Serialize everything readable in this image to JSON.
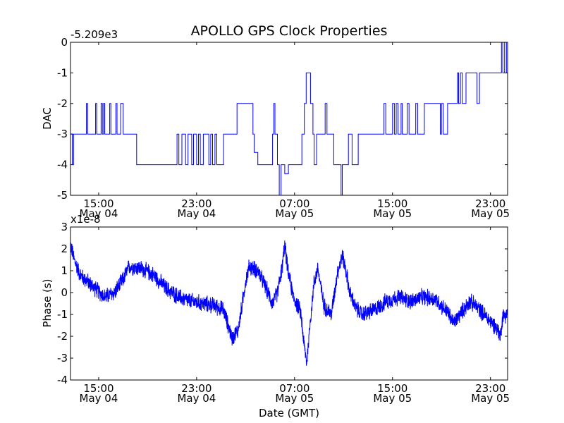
{
  "chart_data": [
    {
      "type": "line",
      "title": "APOLLO GPS Clock Properties",
      "ylabel": "DAC",
      "xlabel": "",
      "offset_label": "-5.209e3",
      "ylim": [
        -5,
        0
      ],
      "yticks": [
        "0",
        "-1",
        "-2",
        "-3",
        "-4",
        "-5"
      ],
      "xlim_hours": [
        12.7,
        48.4
      ],
      "xticks": [
        {
          "hour": 15,
          "time": "15:00",
          "date": "May 04"
        },
        {
          "hour": 23,
          "time": "23:00",
          "date": "May 04"
        },
        {
          "hour": 31,
          "time": "07:00",
          "date": "May 05"
        },
        {
          "hour": 39,
          "time": "15:00",
          "date": "May 05"
        },
        {
          "hour": 47,
          "time": "23:00",
          "date": "May 05"
        }
      ],
      "color": "#0000ff",
      "series": [
        {
          "name": "DAC",
          "steps": [
            [
              12.7,
              -3
            ],
            [
              12.85,
              -4
            ],
            [
              12.95,
              -3
            ],
            [
              14.0,
              -2
            ],
            [
              14.1,
              -3
            ],
            [
              14.75,
              -2
            ],
            [
              14.85,
              -3
            ],
            [
              15.2,
              -2
            ],
            [
              15.3,
              -3
            ],
            [
              15.4,
              -2
            ],
            [
              15.5,
              -3
            ],
            [
              15.9,
              -2
            ],
            [
              16.0,
              -3
            ],
            [
              16.4,
              -2
            ],
            [
              16.5,
              -3
            ],
            [
              16.8,
              -2
            ],
            [
              17.0,
              -3
            ],
            [
              17.5,
              -3
            ],
            [
              18.1,
              -4
            ],
            [
              21.4,
              -3
            ],
            [
              21.55,
              -4
            ],
            [
              21.8,
              -3
            ],
            [
              22.1,
              -4
            ],
            [
              22.3,
              -3
            ],
            [
              22.6,
              -4
            ],
            [
              22.75,
              -3
            ],
            [
              23.0,
              -4
            ],
            [
              23.15,
              -3
            ],
            [
              23.3,
              -4
            ],
            [
              23.55,
              -3
            ],
            [
              24.0,
              -4
            ],
            [
              24.15,
              -3
            ],
            [
              24.3,
              -4
            ],
            [
              24.5,
              -3
            ],
            [
              24.65,
              -4
            ],
            [
              25.2,
              -3
            ],
            [
              26.3,
              -2
            ],
            [
              27.6,
              -3
            ],
            [
              27.7,
              -3.6
            ],
            [
              28.0,
              -4
            ],
            [
              29.2,
              -3
            ],
            [
              29.3,
              -2
            ],
            [
              29.4,
              -3
            ],
            [
              29.6,
              -4
            ],
            [
              29.75,
              -5
            ],
            [
              29.9,
              -4
            ],
            [
              30.2,
              -4.3
            ],
            [
              30.5,
              -4
            ],
            [
              31.6,
              -3
            ],
            [
              31.8,
              -2
            ],
            [
              31.95,
              -1
            ],
            [
              32.3,
              -2
            ],
            [
              32.5,
              -3
            ],
            [
              32.6,
              -4
            ],
            [
              32.8,
              -3
            ],
            [
              33.5,
              -2
            ],
            [
              33.65,
              -3
            ],
            [
              34.2,
              -4
            ],
            [
              34.8,
              -5
            ],
            [
              34.9,
              -4
            ],
            [
              35.4,
              -3
            ],
            [
              35.7,
              -4
            ],
            [
              36.2,
              -3
            ],
            [
              37.1,
              -3
            ],
            [
              37.5,
              -3
            ],
            [
              38.3,
              -2
            ],
            [
              38.45,
              -3
            ],
            [
              39.0,
              -2
            ],
            [
              39.15,
              -3
            ],
            [
              39.3,
              -2
            ],
            [
              39.45,
              -3
            ],
            [
              39.7,
              -2
            ],
            [
              39.8,
              -3
            ],
            [
              40.2,
              -2
            ],
            [
              40.35,
              -3
            ],
            [
              40.9,
              -2
            ],
            [
              41.05,
              -3
            ],
            [
              41.6,
              -2
            ],
            [
              42.9,
              -3
            ],
            [
              43.0,
              -2
            ],
            [
              43.15,
              -3
            ],
            [
              43.5,
              -2
            ],
            [
              44.3,
              -1
            ],
            [
              44.4,
              -2
            ],
            [
              44.55,
              -1
            ],
            [
              44.7,
              -2
            ],
            [
              45.0,
              -1
            ],
            [
              45.9,
              -2
            ],
            [
              46.1,
              -1
            ],
            [
              47.9,
              0
            ],
            [
              48.0,
              -1
            ],
            [
              48.15,
              0
            ],
            [
              48.3,
              -1
            ]
          ]
        }
      ]
    },
    {
      "type": "line",
      "title": "",
      "ylabel": "Phase (s)",
      "xlabel": "Date (GMT)",
      "offset_label": "x1e-8",
      "ylim": [
        -4,
        3
      ],
      "yticks": [
        "3",
        "2",
        "1",
        "0",
        "-1",
        "-2",
        "-3",
        "-4"
      ],
      "xlim_hours": [
        12.7,
        48.4
      ],
      "xticks": [
        {
          "hour": 15,
          "time": "15:00",
          "date": "May 04"
        },
        {
          "hour": 23,
          "time": "23:00",
          "date": "May 04"
        },
        {
          "hour": 31,
          "time": "07:00",
          "date": "May 05"
        },
        {
          "hour": 39,
          "time": "15:00",
          "date": "May 05"
        },
        {
          "hour": 47,
          "time": "23:00",
          "date": "May 05"
        }
      ],
      "color": "#0000ff",
      "series": [
        {
          "name": "Phase",
          "trend": [
            [
              12.7,
              2.2
            ],
            [
              13.0,
              1.5
            ],
            [
              13.5,
              0.8
            ],
            [
              14.5,
              0.3
            ],
            [
              15.5,
              -0.2
            ],
            [
              16.3,
              0.0
            ],
            [
              17.0,
              0.6
            ],
            [
              17.5,
              1.2
            ],
            [
              18.5,
              1.1
            ],
            [
              19.5,
              0.8
            ],
            [
              20.5,
              0.2
            ],
            [
              21.5,
              -0.2
            ],
            [
              22.5,
              -0.4
            ],
            [
              23.5,
              -0.5
            ],
            [
              24.5,
              -0.6
            ],
            [
              25.2,
              -0.8
            ],
            [
              25.9,
              -2.1
            ],
            [
              26.4,
              -1.7
            ],
            [
              27.0,
              0.5
            ],
            [
              27.3,
              1.2
            ],
            [
              28.0,
              1.0
            ],
            [
              28.6,
              0.3
            ],
            [
              29.2,
              -0.5
            ],
            [
              29.6,
              0.0
            ],
            [
              30.0,
              1.2
            ],
            [
              30.2,
              2.2
            ],
            [
              30.45,
              1.0
            ],
            [
              30.9,
              -0.2
            ],
            [
              31.5,
              -0.9
            ],
            [
              31.8,
              -2.5
            ],
            [
              32.0,
              -3.2
            ],
            [
              32.3,
              -1.2
            ],
            [
              32.6,
              0.5
            ],
            [
              32.9,
              1.1
            ],
            [
              33.4,
              -0.6
            ],
            [
              34.0,
              -1.0
            ],
            [
              34.5,
              0.9
            ],
            [
              34.9,
              1.7
            ],
            [
              35.2,
              1.0
            ],
            [
              35.5,
              0.0
            ],
            [
              36.0,
              -0.7
            ],
            [
              36.5,
              -1.0
            ],
            [
              37.5,
              -0.8
            ],
            [
              38.5,
              -0.4
            ],
            [
              39.5,
              -0.2
            ],
            [
              40.5,
              -0.4
            ],
            [
              41.5,
              -0.2
            ],
            [
              42.5,
              -0.3
            ],
            [
              43.0,
              -0.6
            ],
            [
              43.5,
              -0.9
            ],
            [
              44.0,
              -1.4
            ],
            [
              44.5,
              -1.0
            ],
            [
              45.3,
              -0.4
            ],
            [
              46.0,
              -0.7
            ],
            [
              46.8,
              -1.2
            ],
            [
              47.5,
              -1.6
            ],
            [
              47.8,
              -2.0
            ],
            [
              48.0,
              -1.1
            ],
            [
              48.4,
              -0.9
            ]
          ],
          "noise_amplitude": 0.45
        }
      ]
    }
  ]
}
